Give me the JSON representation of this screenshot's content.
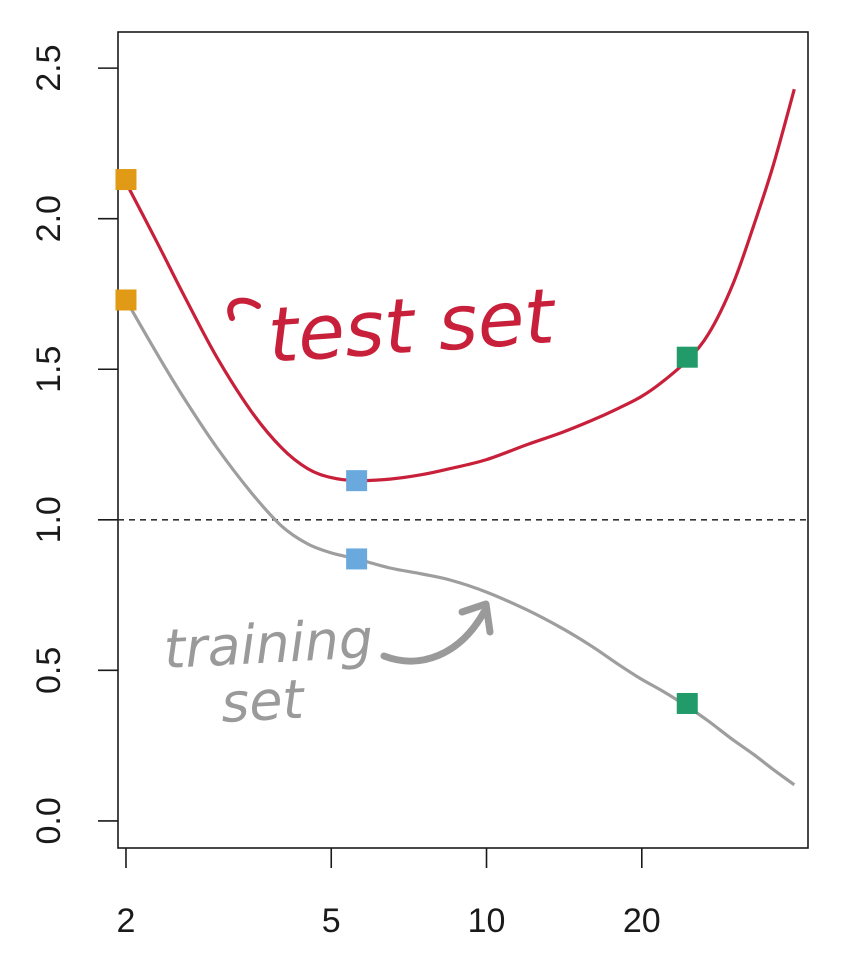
{
  "chart_data": {
    "type": "line",
    "title": "",
    "xlabel": "",
    "ylabel": "",
    "x_scale": "log",
    "xlim": [
      1.93,
      42
    ],
    "ylim": [
      -0.09,
      2.62
    ],
    "x_ticks": [
      2,
      5,
      10,
      20
    ],
    "x_tick_labels": [
      "2",
      "5",
      "10",
      "20"
    ],
    "y_ticks": [
      0.0,
      0.5,
      1.0,
      1.5,
      2.0,
      2.5
    ],
    "y_tick_labels": [
      "0.0",
      "0.5",
      "1.0",
      "1.5",
      "2.0",
      "2.5"
    ],
    "reference_line": {
      "y": 1.0,
      "style": "dashed",
      "color": "#333333"
    },
    "grid": false,
    "series": [
      {
        "color": "#c8203a",
        "x": [
          2,
          2.3,
          2.6,
          3,
          3.5,
          4,
          4.5,
          5,
          5.6,
          6.5,
          7.5,
          8.5,
          10,
          12,
          14,
          16,
          18,
          20,
          22,
          24.5,
          27,
          30,
          33,
          36,
          39.5
        ],
        "y": [
          2.12,
          1.92,
          1.74,
          1.54,
          1.36,
          1.24,
          1.17,
          1.14,
          1.13,
          1.135,
          1.15,
          1.17,
          1.2,
          1.25,
          1.29,
          1.33,
          1.37,
          1.41,
          1.46,
          1.53,
          1.62,
          1.78,
          1.98,
          2.18,
          2.43
        ]
      },
      {
        "color": "#9e9e9e",
        "x": [
          2,
          2.3,
          2.6,
          3,
          3.5,
          4,
          4.5,
          5,
          5.6,
          6.5,
          7.5,
          8.5,
          10,
          12,
          14,
          16,
          18,
          20,
          22,
          24.5,
          27,
          30,
          33,
          36,
          39.5
        ],
        "y": [
          1.73,
          1.55,
          1.4,
          1.24,
          1.09,
          0.98,
          0.92,
          0.89,
          0.87,
          0.84,
          0.82,
          0.8,
          0.76,
          0.7,
          0.64,
          0.58,
          0.52,
          0.47,
          0.43,
          0.38,
          0.33,
          0.27,
          0.22,
          0.17,
          0.12
        ]
      }
    ],
    "markers": [
      {
        "x": 2,
        "y": 2.13,
        "color": "#e09a16"
      },
      {
        "x": 2,
        "y": 1.73,
        "color": "#e09a16"
      },
      {
        "x": 5.6,
        "y": 1.13,
        "color": "#6aa9de"
      },
      {
        "x": 5.6,
        "y": 0.87,
        "color": "#6aa9de"
      },
      {
        "x": 24.5,
        "y": 1.54,
        "color": "#229a6a"
      },
      {
        "x": 24.5,
        "y": 0.39,
        "color": "#229a6a"
      }
    ],
    "annotations": [
      {
        "text": "test set",
        "color": "#c8203a"
      },
      {
        "text": "training",
        "color": "#9a9a9a"
      },
      {
        "text": "set",
        "color": "#9a9a9a"
      }
    ]
  }
}
